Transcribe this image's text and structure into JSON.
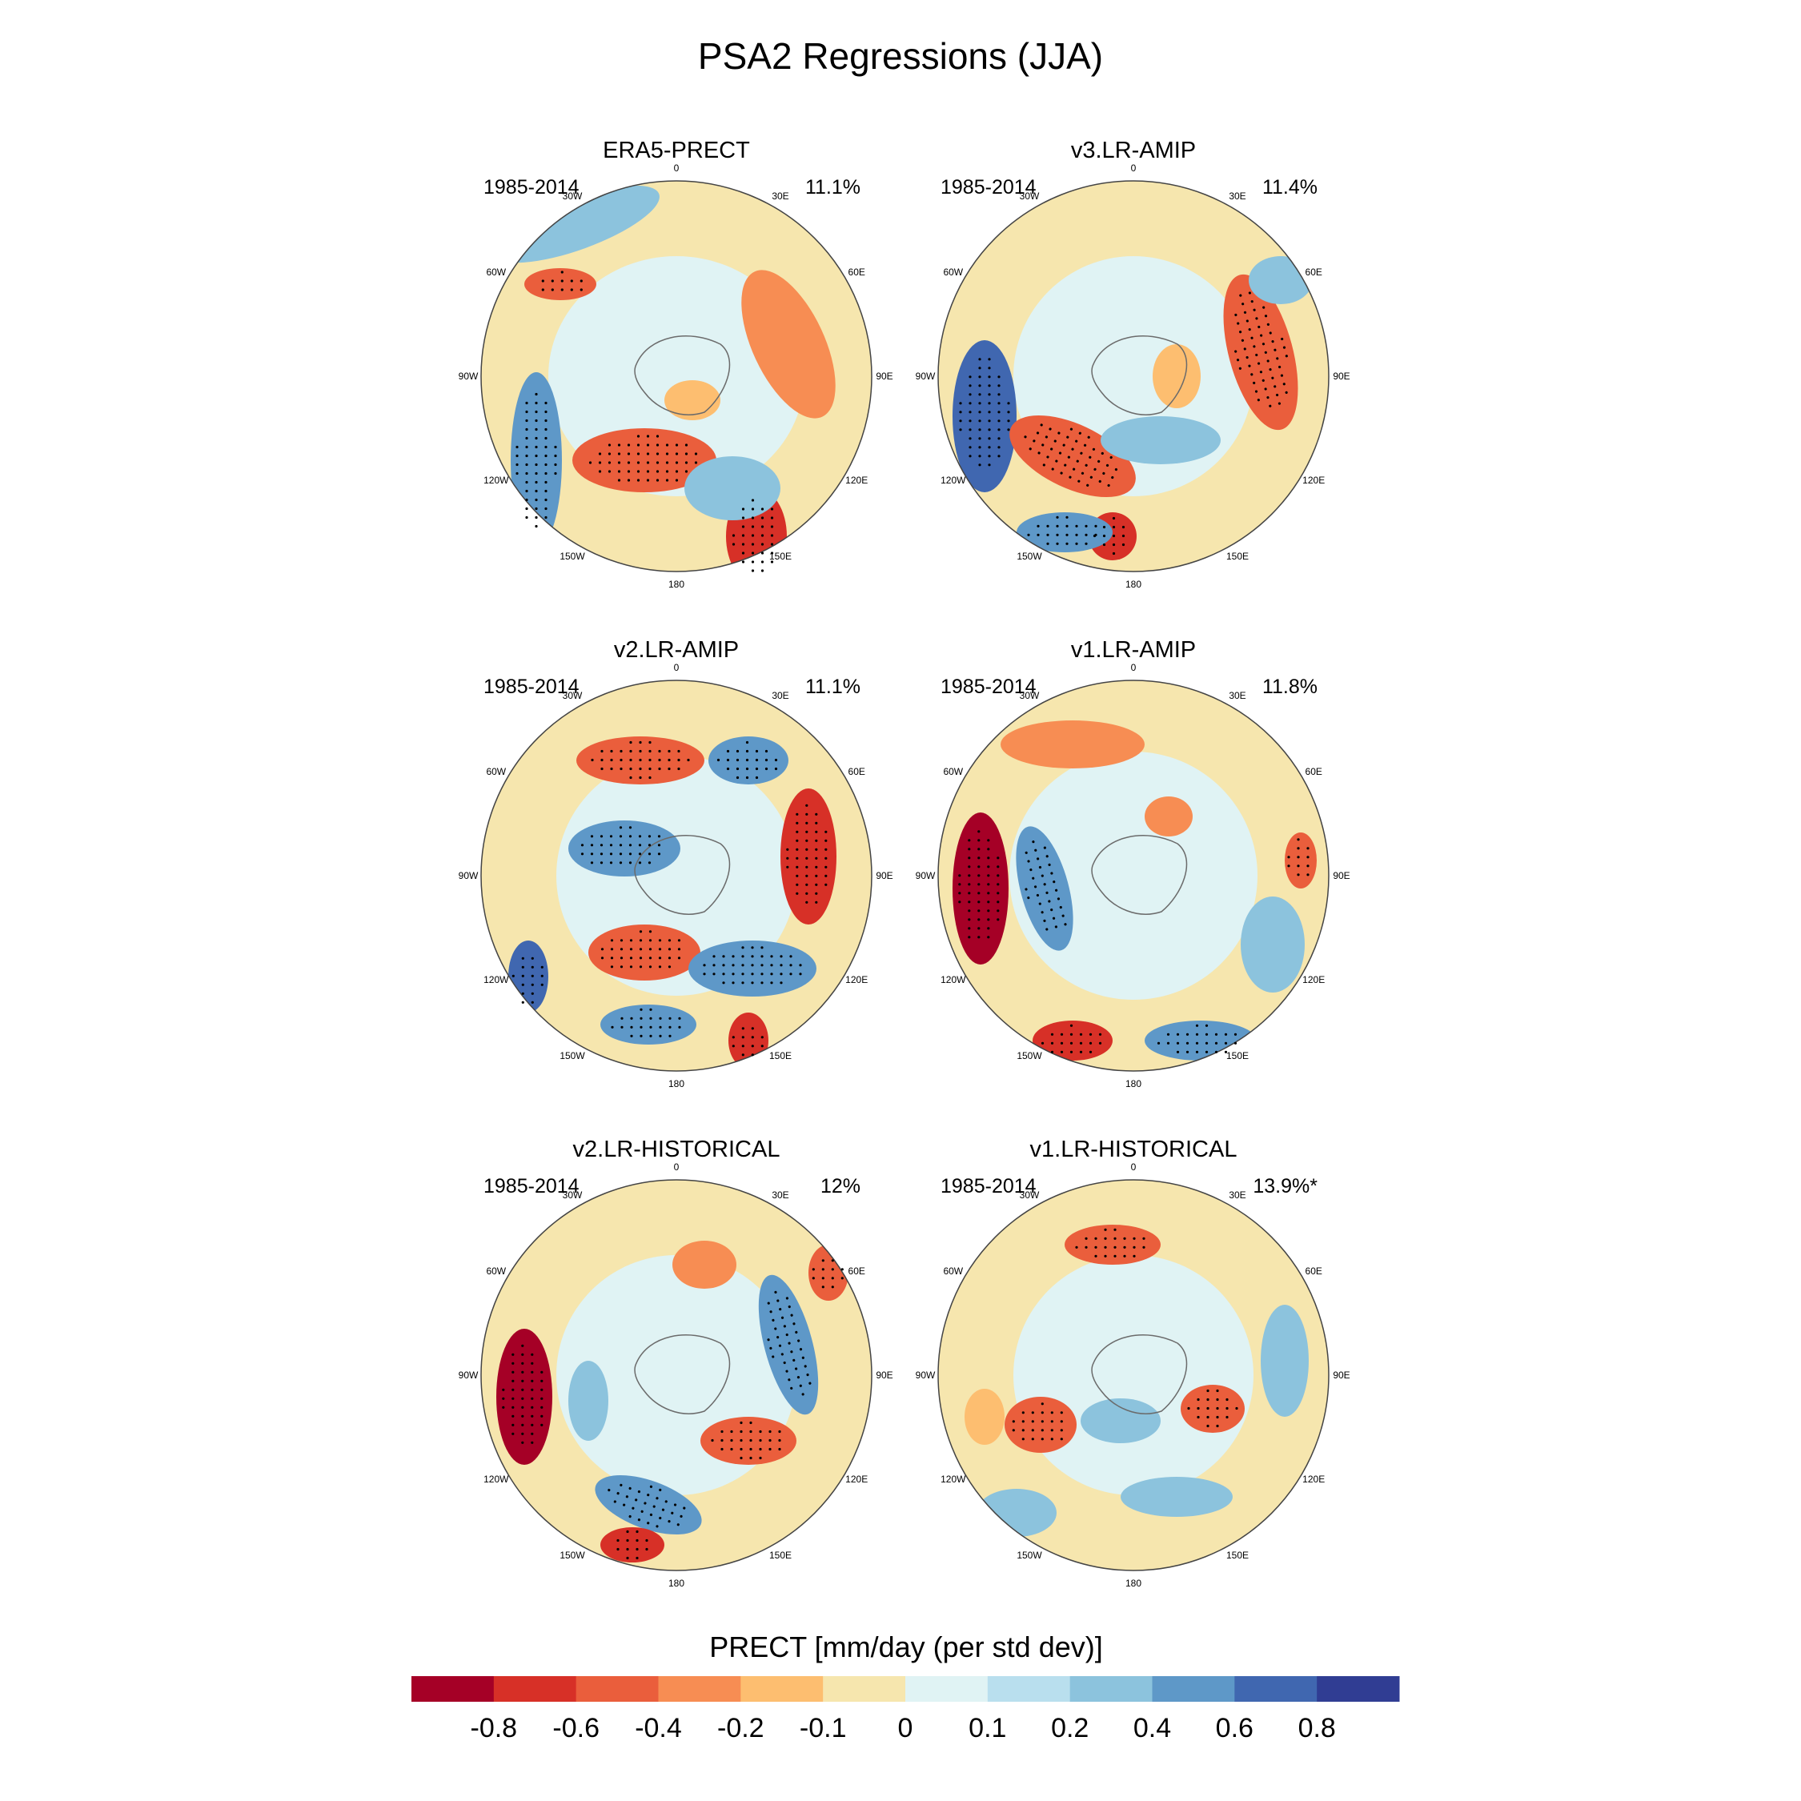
{
  "figure": {
    "title": "PSA2 Regressions (JJA)"
  },
  "panels": [
    {
      "title": "ERA5-PRECT",
      "period": "1985-2014",
      "variance": "11.1%"
    },
    {
      "title": "v3.LR-AMIP",
      "period": "1985-2014",
      "variance": "11.4%"
    },
    {
      "title": "v2.LR-AMIP",
      "period": "1985-2014",
      "variance": "11.1%"
    },
    {
      "title": "v1.LR-AMIP",
      "period": "1985-2014",
      "variance": "11.8%"
    },
    {
      "title": "v2.LR-HISTORICAL",
      "period": "1985-2014",
      "variance": "12%"
    },
    {
      "title": "v1.LR-HISTORICAL",
      "period": "1985-2014",
      "variance": "13.9%*"
    }
  ],
  "longitude_labels": [
    {
      "text": "0",
      "lon": 0
    },
    {
      "text": "30E",
      "lon": 30
    },
    {
      "text": "60E",
      "lon": 60
    },
    {
      "text": "90E",
      "lon": 90
    },
    {
      "text": "120E",
      "lon": 120
    },
    {
      "text": "150E",
      "lon": 150
    },
    {
      "text": "180",
      "lon": 180
    },
    {
      "text": "150W",
      "lon": -150
    },
    {
      "text": "120W",
      "lon": -120
    },
    {
      "text": "90W",
      "lon": -90
    },
    {
      "text": "60W",
      "lon": -60
    },
    {
      "text": "30W",
      "lon": -30
    }
  ],
  "colorbar": {
    "label": "PRECT [mm/day (per std dev)]",
    "colors": [
      "#a50026",
      "#d73027",
      "#ea5e3c",
      "#f78d53",
      "#fdbe70",
      "#f6e6ae",
      "#e0f3f4",
      "#b9dfee",
      "#8cc3dd",
      "#5e98c8",
      "#4067b0",
      "#303d93"
    ],
    "tick_labels": [
      "-0.8",
      "-0.6",
      "-0.4",
      "-0.2",
      "-0.1",
      "0",
      "0.1",
      "0.2",
      "0.4",
      "0.6",
      "0.8"
    ]
  }
}
